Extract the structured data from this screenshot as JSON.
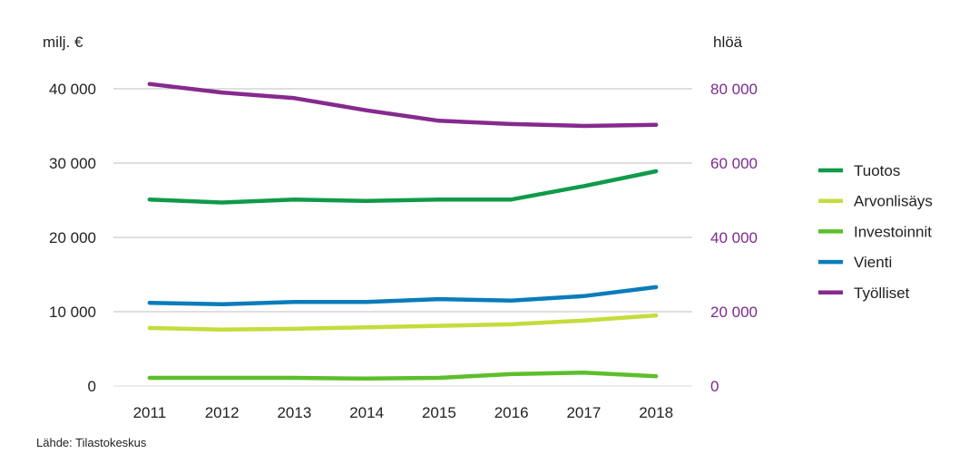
{
  "chart_data": {
    "type": "line",
    "source": "Lähde: Tilastokeskus",
    "x": [
      "2011",
      "2012",
      "2013",
      "2014",
      "2015",
      "2016",
      "2017",
      "2018"
    ],
    "y_left": {
      "unit": "milj. €",
      "range": [
        0,
        40000
      ],
      "ticks": [
        "0",
        "10 000",
        "20 000",
        "30 000",
        "40 000"
      ],
      "tick_values": [
        0,
        10000,
        20000,
        30000,
        40000
      ],
      "color": "#222222"
    },
    "y_right": {
      "unit": "hlöä",
      "range": [
        0,
        80000
      ],
      "ticks": [
        "0",
        "20 000",
        "40 000",
        "60 000",
        "80 000"
      ],
      "tick_values": [
        0,
        20000,
        40000,
        60000,
        80000
      ],
      "color": "#7b2a8c"
    },
    "grid": true,
    "legend_position": "right",
    "series": [
      {
        "name": "Tuotos",
        "axis": "left",
        "color": "#0f9a4a",
        "values": [
          25100,
          24700,
          25100,
          24900,
          25100,
          25100,
          26900,
          28900
        ]
      },
      {
        "name": "Arvonlisäys",
        "axis": "left",
        "color": "#c5dc3c",
        "values": [
          7800,
          7600,
          7700,
          7900,
          8100,
          8300,
          8800,
          9500
        ]
      },
      {
        "name": "Investoinnit",
        "axis": "left",
        "color": "#5cbf2a",
        "values": [
          1100,
          1100,
          1100,
          1000,
          1100,
          1600,
          1800,
          1300
        ]
      },
      {
        "name": "Vienti",
        "axis": "left",
        "color": "#0a7cba",
        "values": [
          11200,
          11000,
          11300,
          11300,
          11700,
          11500,
          12100,
          13300
        ]
      },
      {
        "name": "Työlliset",
        "axis": "right",
        "color": "#862a8e",
        "values": [
          81300,
          79000,
          77500,
          74200,
          71400,
          70500,
          70000,
          70300
        ]
      }
    ]
  }
}
